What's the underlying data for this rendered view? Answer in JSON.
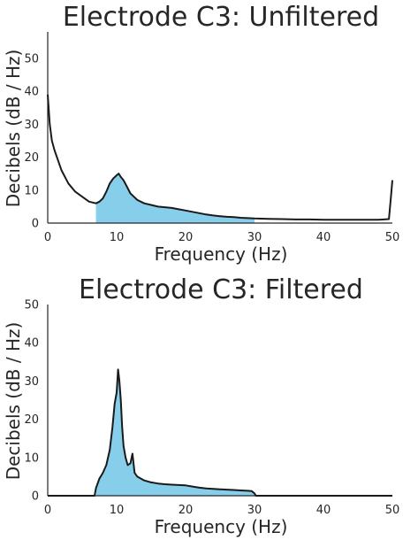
{
  "chart_data": [
    {
      "type": "line",
      "title": "Electrode C3: Unfiltered",
      "xlabel": "Frequency (Hz)",
      "ylabel": "Decibels (dB / Hz)",
      "xlim": [
        0,
        50
      ],
      "ylim": [
        0,
        58
      ],
      "xticks": [
        0,
        10,
        20,
        30,
        40,
        50
      ],
      "yticks": [
        0,
        10,
        20,
        30,
        40,
        50
      ],
      "grid": false,
      "line_color": "#1a1a1a",
      "fill_color": "#87ceeb",
      "fill_range": [
        7,
        30
      ],
      "series": [
        {
          "x": [
            0,
            0.3,
            0.6,
            1,
            1.5,
            2,
            3,
            4,
            5,
            6,
            7,
            7.5,
            8,
            8.5,
            9,
            9.5,
            10,
            10.3,
            10.6,
            11,
            11.5,
            12,
            12.5,
            13,
            14,
            15,
            16,
            17,
            18,
            19,
            20,
            21,
            22,
            23,
            24,
            25,
            26,
            27,
            28,
            29,
            30,
            32,
            34,
            36,
            38,
            40,
            42,
            44,
            46,
            48,
            49.5,
            49.8,
            50
          ],
          "y": [
            39,
            30,
            25,
            22,
            19,
            16,
            12,
            9.5,
            8,
            6.5,
            6,
            6.5,
            7.5,
            9.5,
            12,
            13.5,
            14.5,
            15,
            14,
            13,
            11,
            9,
            8,
            7,
            6,
            5.5,
            5,
            4.8,
            4.6,
            4.2,
            3.8,
            3.4,
            3,
            2.6,
            2.3,
            2.1,
            1.9,
            1.8,
            1.6,
            1.5,
            1.4,
            1.3,
            1.2,
            1.1,
            1.1,
            1.0,
            1.0,
            1.0,
            1.0,
            1.0,
            1.2,
            8,
            13
          ]
        }
      ]
    },
    {
      "type": "line",
      "title": "Electrode C3: Filtered",
      "xlabel": "Frequency (Hz)",
      "ylabel": "Decibels (dB / Hz)",
      "xlim": [
        0,
        50
      ],
      "ylim": [
        0,
        50
      ],
      "xticks": [
        0,
        10,
        20,
        30,
        40,
        50
      ],
      "yticks": [
        0,
        10,
        20,
        30,
        40,
        50
      ],
      "grid": false,
      "line_color": "#1a1a1a",
      "fill_color": "#87ceeb",
      "fill_range": [
        7,
        30
      ],
      "series": [
        {
          "x": [
            0,
            6.8,
            7,
            7.5,
            8,
            8.5,
            9,
            9.4,
            9.7,
            10,
            10.2,
            10.4,
            10.6,
            10.8,
            11,
            11.3,
            11.6,
            12,
            12.3,
            12.6,
            13,
            14,
            15,
            16,
            17,
            18,
            19,
            20,
            21,
            22,
            23,
            24,
            25,
            26,
            27,
            28,
            29,
            29.6,
            30,
            30.2,
            50
          ],
          "y": [
            0,
            0,
            2,
            4.5,
            6,
            8,
            12,
            18,
            24,
            27,
            33,
            30,
            25,
            18,
            13,
            10,
            8,
            8.5,
            11,
            6,
            5,
            4,
            3.5,
            3.2,
            3,
            2.9,
            2.8,
            2.7,
            2.4,
            2.1,
            1.9,
            1.8,
            1.7,
            1.6,
            1.5,
            1.4,
            1.3,
            1.2,
            0.6,
            0,
            0
          ]
        }
      ]
    }
  ]
}
